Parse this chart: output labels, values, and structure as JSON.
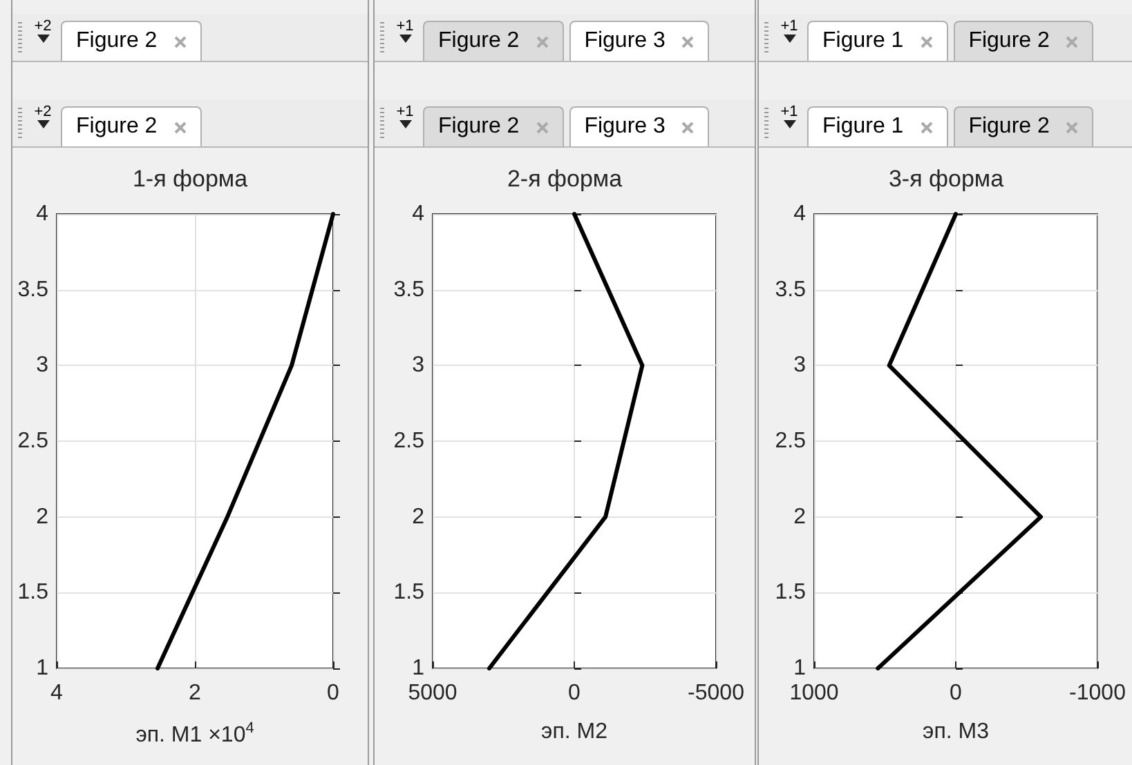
{
  "chart_data": [
    {
      "type": "line",
      "title": "1-я форма",
      "xlabel": "эп. M1 ×10$^{4}$",
      "annotations": [
        "+2",
        "Figure 2"
      ],
      "x": [
        2.54,
        1.53,
        0.6,
        0
      ],
      "values": [
        1,
        2,
        3,
        4
      ],
      "color": "#000000",
      "xlim": [
        4,
        0
      ],
      "xticks": [
        4,
        2,
        0
      ],
      "ylim": [
        1,
        4
      ],
      "yticks": [
        1,
        1.5,
        2,
        2.5,
        3,
        3.5,
        4
      ],
      "grid": true,
      "marker": "none",
      "line_style": "solid"
    },
    {
      "type": "line",
      "title": "2-я форма",
      "xlabel": "эп. M2",
      "annotations": [
        "+1",
        "Figure 2",
        "Figure 3"
      ],
      "x": [
        3000,
        -1100,
        -2400,
        0
      ],
      "values": [
        1,
        2,
        3,
        4
      ],
      "color": "#000000",
      "xlim": [
        5000,
        -5000
      ],
      "xticks": [
        5000,
        0,
        -5000
      ],
      "ylim": [
        1,
        4
      ],
      "yticks": [
        1,
        1.5,
        2,
        2.5,
        3,
        3.5,
        4
      ],
      "grid": true,
      "marker": "none",
      "line_style": "solid"
    },
    {
      "type": "line",
      "title": "3-я форма",
      "xlabel": "эп. M3",
      "annotations": [
        "+1",
        "Figure 1",
        "Figure 2"
      ],
      "x": [
        550,
        -600,
        470,
        0
      ],
      "values": [
        1,
        2,
        3,
        4
      ],
      "color": "#000000",
      "xlim": [
        1000,
        -1000
      ],
      "xticks": [
        1000,
        0,
        -1000
      ],
      "ylim": [
        1,
        4
      ],
      "yticks": [
        1,
        1.5,
        2,
        2.5,
        3,
        3.5,
        4
      ],
      "grid": true,
      "marker": "none",
      "line_style": "solid"
    }
  ]
}
